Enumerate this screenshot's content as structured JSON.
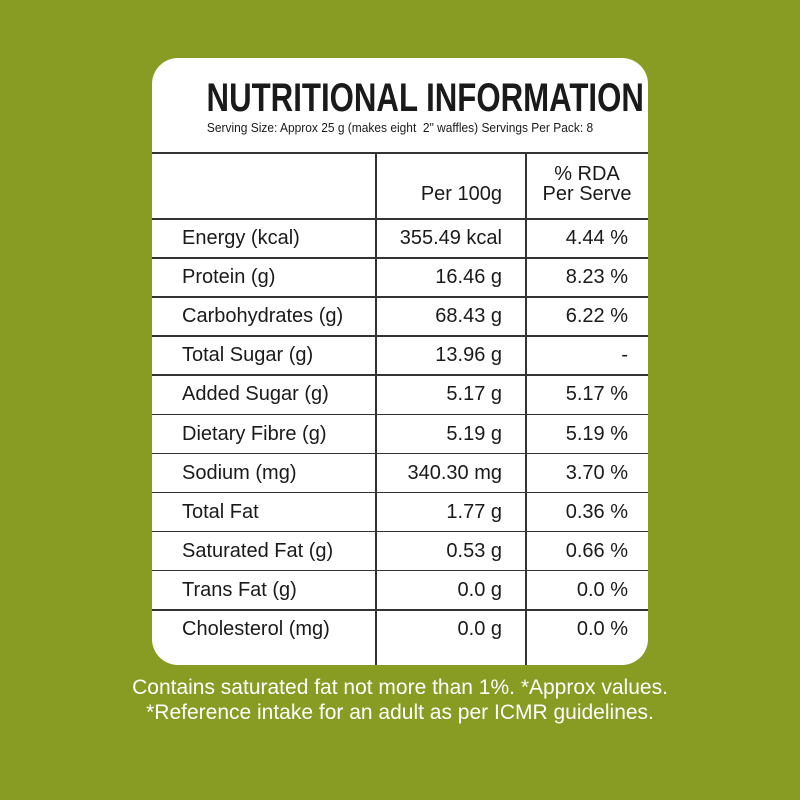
{
  "title": "NUTRITIONAL INFORMATION",
  "subtitle": "Serving Size: Approx 25 g (makes eight  2\" waffles) Servings Per Pack: 8",
  "table": {
    "header": [
      "Per 100g",
      [
        "% RDA",
        "Per Serve"
      ]
    ],
    "rows": [
      [
        "Energy (kcal)",
        "355.49 kcal",
        "4.44 %"
      ],
      [
        "Protein (g)",
        "16.46 g",
        "8.23 %"
      ],
      [
        "Carbohydrates (g)",
        "68.43 g",
        "6.22 %"
      ],
      [
        "Total Sugar (g)",
        "13.96 g",
        "-"
      ],
      [
        "Added Sugar (g)",
        "5.17 g",
        "5.17 %"
      ],
      [
        "Dietary Fibre (g)",
        "5.19 g",
        "5.19 %"
      ],
      [
        "Sodium (mg)",
        "340.30 mg",
        "3.70 %"
      ],
      [
        "Total Fat",
        "1.77 g",
        "0.36 %"
      ],
      [
        "Saturated Fat (g)",
        "0.53 g",
        "0.66 %"
      ],
      [
        "Trans Fat (g)",
        "0.0 g",
        "0.0 %"
      ],
      [
        "Cholesterol (mg)",
        "0.0 g",
        "0.0 %"
      ]
    ]
  },
  "footer": [
    "Contains saturated fat not more than 1%. *Approx values.",
    "*Reference intake for an adult as per ICMR guidelines."
  ]
}
